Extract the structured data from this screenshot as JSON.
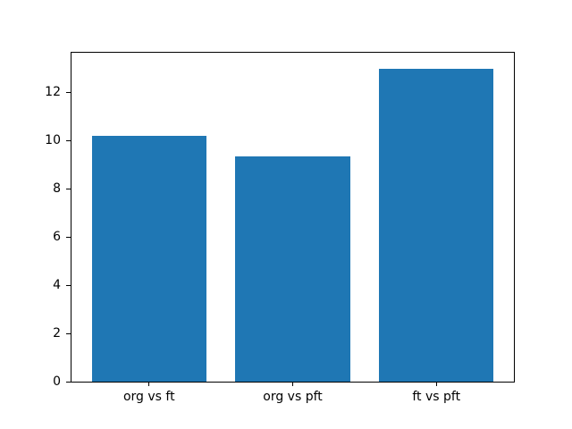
{
  "figure": {
    "background_color": "#ffffff",
    "bar_color": "#1f77b4",
    "spine_color": "#000000",
    "text_color": "#000000"
  },
  "chart_data": {
    "type": "bar",
    "categories": [
      "org vs ft",
      "org vs pft",
      "ft vs pft"
    ],
    "values": [
      10.2,
      9.35,
      13.0
    ],
    "title": "",
    "xlabel": "",
    "ylabel": "",
    "ylim": [
      0,
      13.65
    ],
    "xlim": [
      -0.54,
      2.54
    ],
    "yticks": [
      0,
      2,
      4,
      6,
      8,
      10,
      12
    ],
    "bar_width": 0.8,
    "grid": false,
    "legend_position": "none"
  }
}
